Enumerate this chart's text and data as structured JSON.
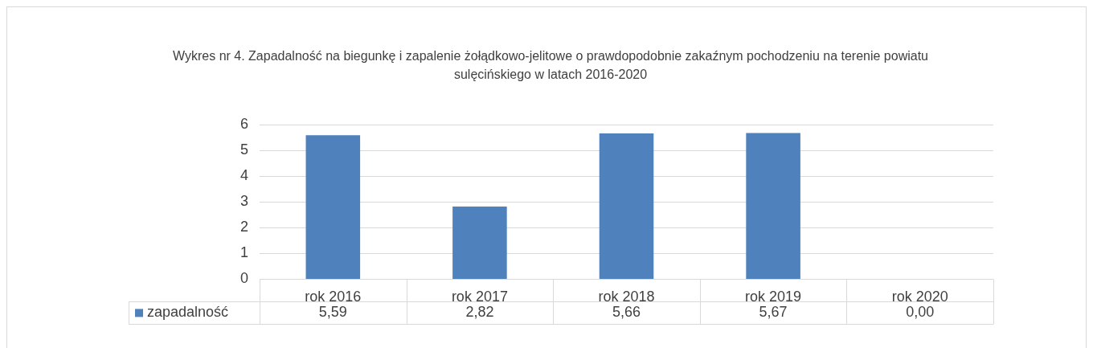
{
  "chart_data": {
    "type": "bar",
    "title": "Wykres nr 4. Zapadalność na biegunkę i zapalenie żołądkowo-jelitowe o prawdopodobnie zakaźnym pochodzeniu na terenie powiatu sulęcińskiego w latach 2016-2020",
    "categories": [
      "rok 2016",
      "rok 2017",
      "rok 2018",
      "rok 2019",
      "rok 2020"
    ],
    "series": [
      {
        "name": "zapadalność",
        "color": "#4f81bd",
        "values": [
          5.59,
          2.82,
          5.66,
          5.67,
          0.0
        ],
        "value_labels": [
          "5,59",
          "2,82",
          "5,66",
          "5,67",
          "0,00"
        ]
      }
    ],
    "ylim": [
      0,
      6
    ],
    "yticks": [
      0,
      1,
      2,
      3,
      4,
      5,
      6
    ],
    "grid": "y",
    "legend": "bottom"
  }
}
